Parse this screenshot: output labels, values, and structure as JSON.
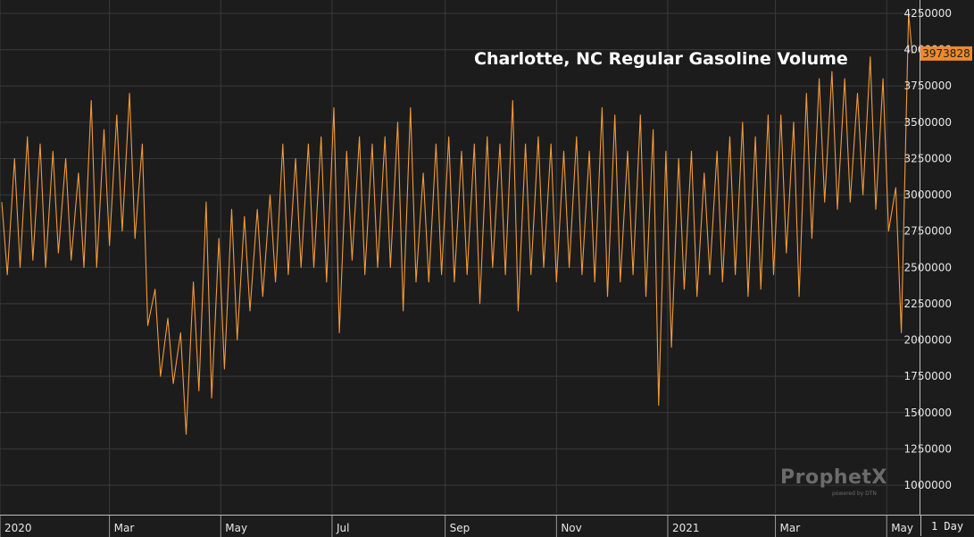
{
  "chart_data": {
    "type": "line",
    "title": "Charlotte, NC Regular Gasoline Volume",
    "xlabel": "",
    "ylabel": "",
    "ylim": [
      750000,
      4300000
    ],
    "yticks": [
      "4250000",
      "4000000",
      "3750000",
      "3500000",
      "3250000",
      "3000000",
      "2750000",
      "2500000",
      "2250000",
      "2000000",
      "1750000",
      "1500000",
      "1250000",
      "1000000"
    ],
    "xticks": [
      {
        "label": "2020",
        "date": "2020-01-01"
      },
      {
        "label": "Mar",
        "date": "2020-03-01"
      },
      {
        "label": "May",
        "date": "2020-05-01"
      },
      {
        "label": "Jul",
        "date": "2020-07-01"
      },
      {
        "label": "Sep",
        "date": "2020-09-01"
      },
      {
        "label": "Nov",
        "date": "2020-11-01"
      },
      {
        "label": "2021",
        "date": "2021-01-01"
      },
      {
        "label": "Mar",
        "date": "2021-03-01"
      },
      {
        "label": "May",
        "date": "2021-05-01"
      }
    ],
    "last_value_label": "3973828",
    "grid": true,
    "colors": {
      "line": "#f39a3a",
      "background": "#1c1c1c",
      "grid": "#3a3a3a",
      "last_value_box": "#f08a2a"
    },
    "series": [
      {
        "points": [
          [
            "2020-01-02",
            2950000
          ],
          [
            "2020-01-05",
            2450000
          ],
          [
            "2020-01-09",
            3250000
          ],
          [
            "2020-01-12",
            2500000
          ],
          [
            "2020-01-16",
            3400000
          ],
          [
            "2020-01-19",
            2550000
          ],
          [
            "2020-01-23",
            3350000
          ],
          [
            "2020-01-26",
            2500000
          ],
          [
            "2020-01-30",
            3300000
          ],
          [
            "2020-02-02",
            2600000
          ],
          [
            "2020-02-06",
            3250000
          ],
          [
            "2020-02-09",
            2550000
          ],
          [
            "2020-02-13",
            3150000
          ],
          [
            "2020-02-16",
            2500000
          ],
          [
            "2020-02-20",
            3650000
          ],
          [
            "2020-02-23",
            2500000
          ],
          [
            "2020-02-27",
            3450000
          ],
          [
            "2020-03-01",
            2650000
          ],
          [
            "2020-03-05",
            3550000
          ],
          [
            "2020-03-08",
            2750000
          ],
          [
            "2020-03-12",
            3700000
          ],
          [
            "2020-03-15",
            2700000
          ],
          [
            "2020-03-19",
            3350000
          ],
          [
            "2020-03-22",
            2100000
          ],
          [
            "2020-03-26",
            2350000
          ],
          [
            "2020-03-29",
            1750000
          ],
          [
            "2020-04-02",
            2150000
          ],
          [
            "2020-04-05",
            1700000
          ],
          [
            "2020-04-09",
            2050000
          ],
          [
            "2020-04-12",
            1350000
          ],
          [
            "2020-04-16",
            2400000
          ],
          [
            "2020-04-19",
            1650000
          ],
          [
            "2020-04-23",
            2950000
          ],
          [
            "2020-04-26",
            1600000
          ],
          [
            "2020-04-30",
            2700000
          ],
          [
            "2020-05-03",
            1800000
          ],
          [
            "2020-05-07",
            2900000
          ],
          [
            "2020-05-10",
            2000000
          ],
          [
            "2020-05-14",
            2850000
          ],
          [
            "2020-05-17",
            2200000
          ],
          [
            "2020-05-21",
            2900000
          ],
          [
            "2020-05-24",
            2300000
          ],
          [
            "2020-05-28",
            3000000
          ],
          [
            "2020-05-31",
            2400000
          ],
          [
            "2020-06-04",
            3350000
          ],
          [
            "2020-06-07",
            2450000
          ],
          [
            "2020-06-11",
            3250000
          ],
          [
            "2020-06-14",
            2500000
          ],
          [
            "2020-06-18",
            3350000
          ],
          [
            "2020-06-21",
            2500000
          ],
          [
            "2020-06-25",
            3400000
          ],
          [
            "2020-06-28",
            2400000
          ],
          [
            "2020-07-02",
            3600000
          ],
          [
            "2020-07-05",
            2050000
          ],
          [
            "2020-07-09",
            3300000
          ],
          [
            "2020-07-12",
            2550000
          ],
          [
            "2020-07-16",
            3400000
          ],
          [
            "2020-07-19",
            2450000
          ],
          [
            "2020-07-23",
            3350000
          ],
          [
            "2020-07-26",
            2500000
          ],
          [
            "2020-07-30",
            3400000
          ],
          [
            "2020-08-02",
            2500000
          ],
          [
            "2020-08-06",
            3500000
          ],
          [
            "2020-08-09",
            2200000
          ],
          [
            "2020-08-13",
            3600000
          ],
          [
            "2020-08-16",
            2400000
          ],
          [
            "2020-08-20",
            3150000
          ],
          [
            "2020-08-23",
            2400000
          ],
          [
            "2020-08-27",
            3350000
          ],
          [
            "2020-08-30",
            2450000
          ],
          [
            "2020-09-03",
            3400000
          ],
          [
            "2020-09-06",
            2400000
          ],
          [
            "2020-09-10",
            3300000
          ],
          [
            "2020-09-13",
            2450000
          ],
          [
            "2020-09-17",
            3350000
          ],
          [
            "2020-09-20",
            2250000
          ],
          [
            "2020-09-24",
            3400000
          ],
          [
            "2020-09-27",
            2500000
          ],
          [
            "2020-10-01",
            3350000
          ],
          [
            "2020-10-04",
            2450000
          ],
          [
            "2020-10-08",
            3650000
          ],
          [
            "2020-10-11",
            2200000
          ],
          [
            "2020-10-15",
            3350000
          ],
          [
            "2020-10-18",
            2450000
          ],
          [
            "2020-10-22",
            3400000
          ],
          [
            "2020-10-25",
            2500000
          ],
          [
            "2020-10-29",
            3350000
          ],
          [
            "2020-11-01",
            2400000
          ],
          [
            "2020-11-05",
            3300000
          ],
          [
            "2020-11-08",
            2500000
          ],
          [
            "2020-11-12",
            3400000
          ],
          [
            "2020-11-15",
            2450000
          ],
          [
            "2020-11-19",
            3300000
          ],
          [
            "2020-11-22",
            2400000
          ],
          [
            "2020-11-26",
            3600000
          ],
          [
            "2020-11-29",
            2300000
          ],
          [
            "2020-12-03",
            3550000
          ],
          [
            "2020-12-06",
            2400000
          ],
          [
            "2020-12-10",
            3300000
          ],
          [
            "2020-12-13",
            2450000
          ],
          [
            "2020-12-17",
            3550000
          ],
          [
            "2020-12-20",
            2300000
          ],
          [
            "2020-12-24",
            3450000
          ],
          [
            "2020-12-27",
            1550000
          ],
          [
            "2020-12-31",
            3300000
          ],
          [
            "2021-01-03",
            1950000
          ],
          [
            "2021-01-07",
            3250000
          ],
          [
            "2021-01-10",
            2350000
          ],
          [
            "2021-01-14",
            3300000
          ],
          [
            "2021-01-17",
            2300000
          ],
          [
            "2021-01-21",
            3150000
          ],
          [
            "2021-01-24",
            2450000
          ],
          [
            "2021-01-28",
            3300000
          ],
          [
            "2021-01-31",
            2400000
          ],
          [
            "2021-02-04",
            3400000
          ],
          [
            "2021-02-07",
            2450000
          ],
          [
            "2021-02-11",
            3500000
          ],
          [
            "2021-02-14",
            2300000
          ],
          [
            "2021-02-18",
            3400000
          ],
          [
            "2021-02-21",
            2350000
          ],
          [
            "2021-02-25",
            3550000
          ],
          [
            "2021-02-28",
            2450000
          ],
          [
            "2021-03-04",
            3550000
          ],
          [
            "2021-03-07",
            2600000
          ],
          [
            "2021-03-11",
            3500000
          ],
          [
            "2021-03-14",
            2300000
          ],
          [
            "2021-03-18",
            3700000
          ],
          [
            "2021-03-21",
            2700000
          ],
          [
            "2021-03-25",
            3800000
          ],
          [
            "2021-03-28",
            2950000
          ],
          [
            "2021-04-01",
            3850000
          ],
          [
            "2021-04-04",
            2900000
          ],
          [
            "2021-04-08",
            3800000
          ],
          [
            "2021-04-11",
            2950000
          ],
          [
            "2021-04-15",
            3700000
          ],
          [
            "2021-04-18",
            3000000
          ],
          [
            "2021-04-22",
            3950000
          ],
          [
            "2021-04-25",
            2900000
          ],
          [
            "2021-04-29",
            3800000
          ],
          [
            "2021-05-02",
            2750000
          ],
          [
            "2021-05-06",
            3050000
          ],
          [
            "2021-05-09",
            2050000
          ],
          [
            "2021-05-13",
            4250000
          ],
          [
            "2021-05-15",
            3973828
          ]
        ]
      }
    ]
  },
  "ui": {
    "period_label": "1 Day"
  },
  "watermark": {
    "brand": "ProphetX",
    "sub": "powered by DTN"
  }
}
